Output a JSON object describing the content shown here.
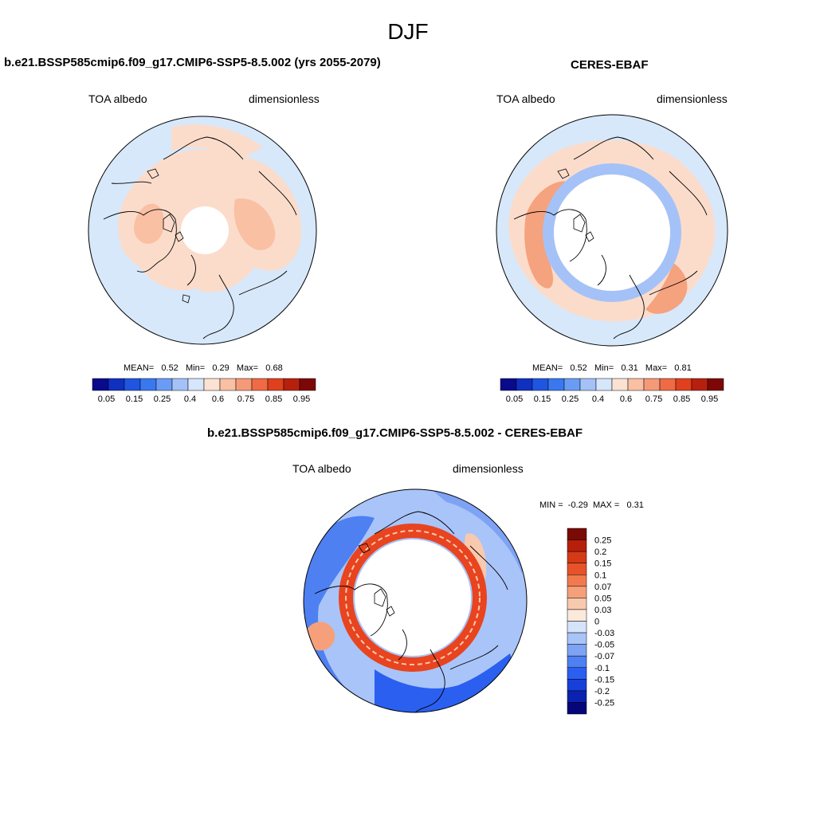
{
  "figure": {
    "season": "DJF",
    "panels": [
      {
        "title": "b.e21.BSSP585cmip6.f09_g17.CMIP6-SSP5-8.5.002 (yrs 2055-2079)",
        "variable": "TOA albedo",
        "units": "dimensionless",
        "stats": {
          "mean_label": "MEAN=",
          "mean": "0.52",
          "min_label": "Min=",
          "min": "0.29",
          "max_label": "Max=",
          "max": "0.68"
        }
      },
      {
        "title": "CERES-EBAF",
        "variable": "TOA albedo",
        "units": "dimensionless",
        "stats": {
          "mean_label": "MEAN=",
          "mean": "0.52",
          "min_label": "Min=",
          "min": "0.31",
          "max_label": "Max=",
          "max": "0.81"
        }
      },
      {
        "title": "b.e21.BSSP585cmip6.f09_g17.CMIP6-SSP5-8.5.002 - CERES-EBAF",
        "variable": "TOA albedo",
        "units": "dimensionless",
        "stats": {
          "min_label": "MIN =",
          "min": "-0.29",
          "max_label": "MAX =",
          "max": "0.31"
        }
      }
    ]
  },
  "colors": {
    "abs_colorbar": [
      "#0a0a8c",
      "#1030c0",
      "#1f55e0",
      "#3a78f0",
      "#6a9cf5",
      "#a4c2f7",
      "#d6e6fb",
      "#fbe2d2",
      "#f9c0a4",
      "#f59a78",
      "#ef6a45",
      "#e0401e",
      "#b8200e",
      "#7d0707"
    ],
    "diff_colorbar": [
      "#06067a",
      "#0b22b0",
      "#1640d8",
      "#2a5ff0",
      "#4e80f2",
      "#7ea3f5",
      "#a9c4f8",
      "#d5e4fb",
      "#fbe9dc",
      "#f9c9ae",
      "#f5a07a",
      "#f07a4e",
      "#e8522a",
      "#d43a16",
      "#b81f0a",
      "#7a0a05"
    ],
    "ocean_light": "#d7e8fb",
    "land_pink": "#fbdccb",
    "ring_red": "#e8441f"
  },
  "chart_data": [
    {
      "type": "heatmap",
      "projection": "north polar stereographic",
      "title": "b.e21.BSSP585cmip6.f09_g17.CMIP6-SSP5-8.5.002 (yrs 2055-2079)",
      "variable": "TOA albedo",
      "units": "dimensionless",
      "colorbar_levels": [
        "0.05",
        "0.1",
        "0.15",
        "0.2",
        "0.25",
        "0.3",
        "0.4",
        "0.5",
        "0.6",
        "0.7",
        "0.75",
        "0.8",
        "0.85",
        "0.9",
        "0.95"
      ],
      "colorbar_tick_labels": [
        "0.05",
        "0.15",
        "0.25",
        "0.4",
        "0.6",
        "0.75",
        "0.85",
        "0.95"
      ],
      "mean": 0.52,
      "min": 0.29,
      "max": 0.68
    },
    {
      "type": "heatmap",
      "projection": "north polar stereographic",
      "title": "CERES-EBAF",
      "variable": "TOA albedo",
      "units": "dimensionless",
      "colorbar_tick_labels": [
        "0.05",
        "0.15",
        "0.25",
        "0.4",
        "0.6",
        "0.75",
        "0.85",
        "0.95"
      ],
      "mean": 0.52,
      "min": 0.31,
      "max": 0.81
    },
    {
      "type": "heatmap",
      "projection": "north polar stereographic",
      "title": "b.e21.BSSP585cmip6.f09_g17.CMIP6-SSP5-8.5.002 - CERES-EBAF",
      "variable": "TOA albedo",
      "units": "dimensionless",
      "colorbar_levels": [
        "0.25",
        "0.2",
        "0.15",
        "0.1",
        "0.07",
        "0.05",
        "0.03",
        "0",
        "-0.03",
        "-0.05",
        "-0.07",
        "-0.1",
        "-0.15",
        "-0.2",
        "-0.25"
      ],
      "min": -0.29,
      "max": 0.31
    }
  ]
}
